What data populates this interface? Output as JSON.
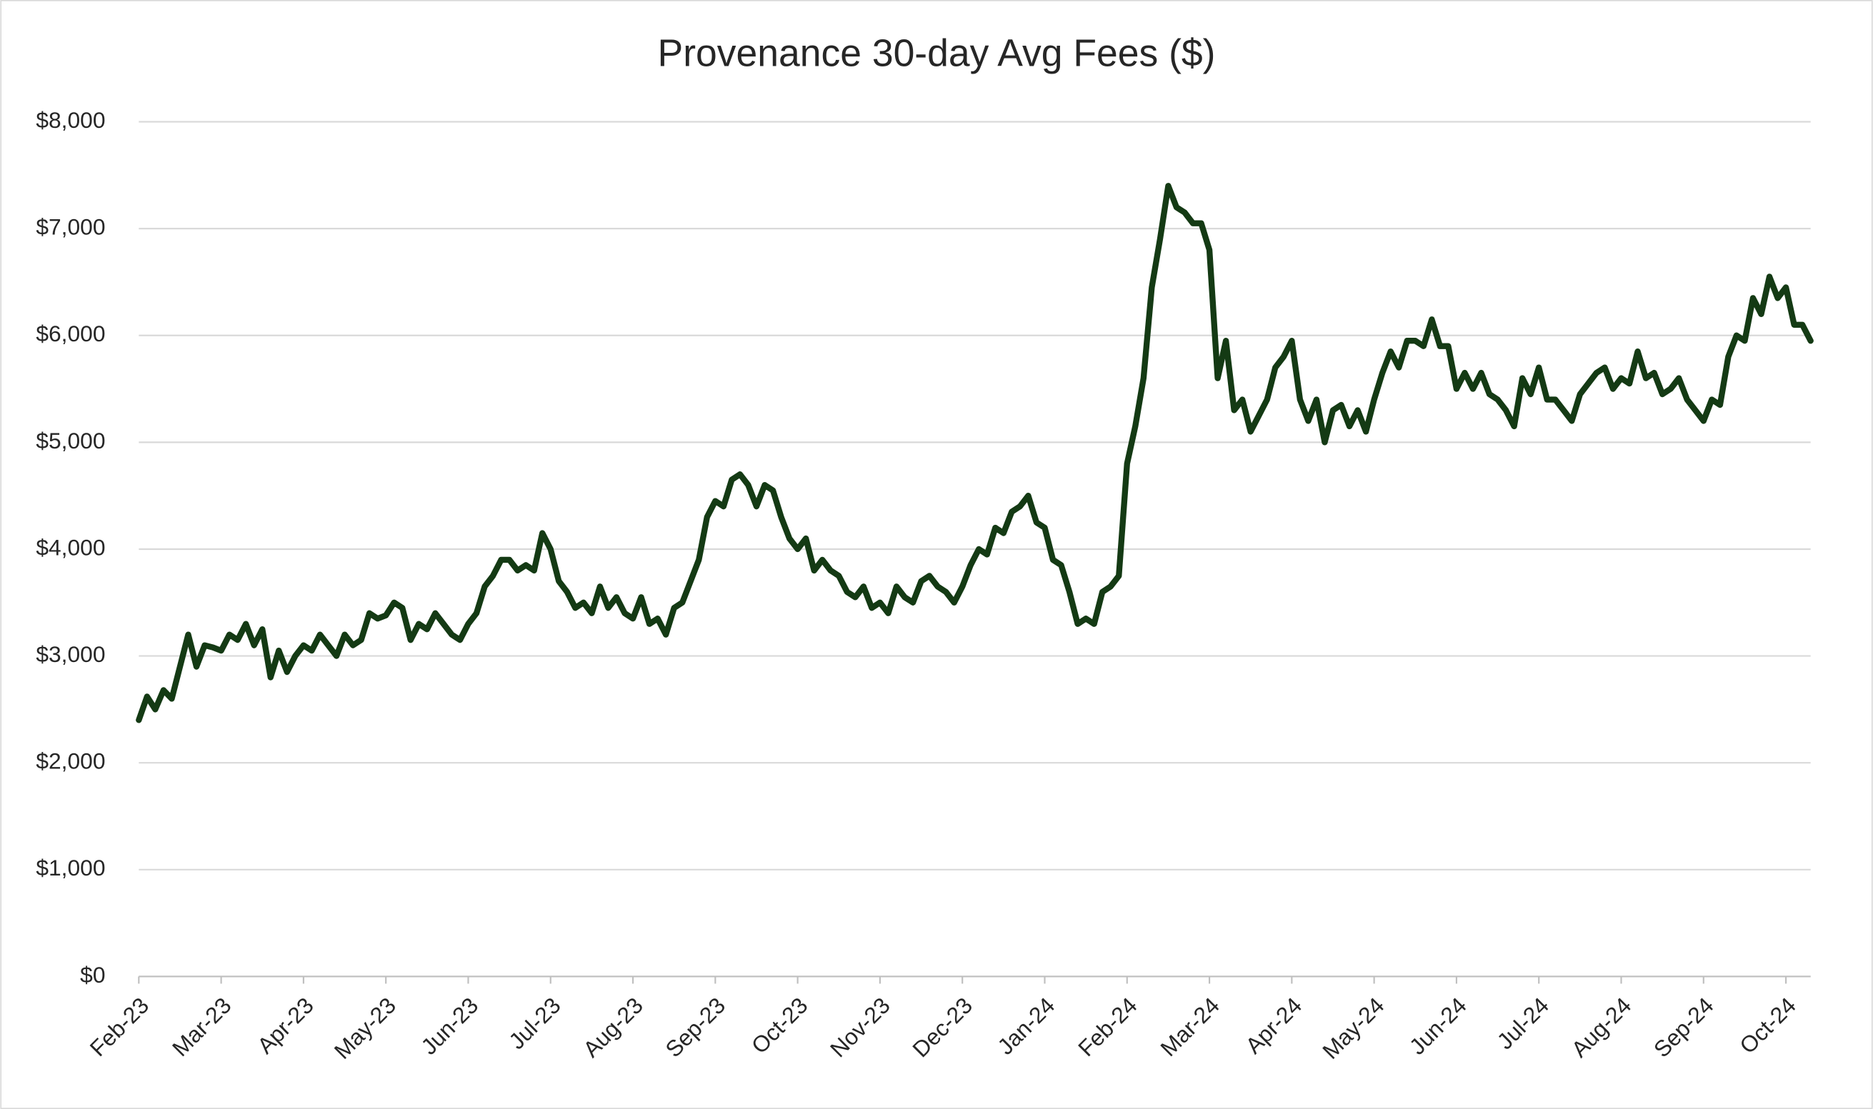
{
  "chart_data": {
    "type": "line",
    "title": "Provenance 30-day Avg Fees ($)",
    "categories": [
      "Feb-23",
      null,
      null,
      null,
      null,
      null,
      null,
      null,
      null,
      null,
      "Mar-23",
      null,
      null,
      null,
      null,
      null,
      null,
      null,
      null,
      null,
      "Apr-23",
      null,
      null,
      null,
      null,
      null,
      null,
      null,
      null,
      null,
      "May-23",
      null,
      null,
      null,
      null,
      null,
      null,
      null,
      null,
      null,
      "Jun-23",
      null,
      null,
      null,
      null,
      null,
      null,
      null,
      null,
      null,
      "Jul-23",
      null,
      null,
      null,
      null,
      null,
      null,
      null,
      null,
      null,
      "Aug-23",
      null,
      null,
      null,
      null,
      null,
      null,
      null,
      null,
      null,
      "Sep-23",
      null,
      null,
      null,
      null,
      null,
      null,
      null,
      null,
      null,
      "Oct-23",
      null,
      null,
      null,
      null,
      null,
      null,
      null,
      null,
      null,
      "Nov-23",
      null,
      null,
      null,
      null,
      null,
      null,
      null,
      null,
      null,
      "Dec-23",
      null,
      null,
      null,
      null,
      null,
      null,
      null,
      null,
      null,
      "Jan-24",
      null,
      null,
      null,
      null,
      null,
      null,
      null,
      null,
      null,
      "Feb-24",
      null,
      null,
      null,
      null,
      null,
      null,
      null,
      null,
      null,
      "Mar-24",
      null,
      null,
      null,
      null,
      null,
      null,
      null,
      null,
      null,
      "Apr-24",
      null,
      null,
      null,
      null,
      null,
      null,
      null,
      null,
      null,
      "May-24",
      null,
      null,
      null,
      null,
      null,
      null,
      null,
      null,
      null,
      "Jun-24",
      null,
      null,
      null,
      null,
      null,
      null,
      null,
      null,
      null,
      "Jul-24",
      null,
      null,
      null,
      null,
      null,
      null,
      null,
      null,
      null,
      "Aug-24",
      null,
      null,
      null,
      null,
      null,
      null,
      null,
      null,
      null,
      "Sep-24",
      null,
      null,
      null,
      null,
      null,
      null,
      null,
      null,
      null,
      "Oct-24",
      null,
      null,
      null
    ],
    "series": [
      {
        "color": "#143a14",
        "values": [
          2400,
          2620,
          2500,
          2680,
          2600,
          2900,
          3200,
          2900,
          3100,
          3080,
          3050,
          3200,
          3150,
          3300,
          3100,
          3250,
          2800,
          3050,
          2850,
          3000,
          3100,
          3050,
          3200,
          3100,
          3000,
          3200,
          3100,
          3150,
          3400,
          3350,
          3380,
          3500,
          3450,
          3150,
          3300,
          3250,
          3400,
          3300,
          3200,
          3150,
          3300,
          3400,
          3650,
          3750,
          3900,
          3900,
          3800,
          3850,
          3800,
          4150,
          4000,
          3700,
          3600,
          3450,
          3500,
          3400,
          3650,
          3450,
          3550,
          3400,
          3350,
          3550,
          3300,
          3350,
          3200,
          3450,
          3500,
          3700,
          3900,
          4300,
          4450,
          4400,
          4650,
          4700,
          4600,
          4400,
          4600,
          4550,
          4300,
          4100,
          4000,
          4100,
          3800,
          3900,
          3800,
          3750,
          3600,
          3550,
          3650,
          3450,
          3500,
          3400,
          3650,
          3550,
          3500,
          3700,
          3750,
          3650,
          3600,
          3500,
          3650,
          3850,
          4000,
          3950,
          4200,
          4150,
          4350,
          4400,
          4500,
          4250,
          4200,
          3900,
          3850,
          3600,
          3300,
          3350,
          3300,
          3600,
          3650,
          3750,
          4800,
          5150,
          5600,
          6450,
          6900,
          7400,
          7200,
          7150,
          7050,
          7050,
          6800,
          5600,
          5950,
          5300,
          5400,
          5100,
          5250,
          5400,
          5700,
          5800,
          5950,
          5400,
          5200,
          5400,
          5000,
          5300,
          5350,
          5150,
          5300,
          5100,
          5400,
          5650,
          5850,
          5700,
          5950,
          5950,
          5900,
          6150,
          5900,
          5900,
          5500,
          5650,
          5500,
          5650,
          5450,
          5400,
          5300,
          5150,
          5600,
          5450,
          5700,
          5400,
          5400,
          5300,
          5200,
          5450,
          5550,
          5650,
          5700,
          5500,
          5600,
          5550,
          5850,
          5600,
          5650,
          5450,
          5500,
          5600,
          5400,
          5300,
          5200,
          5400,
          5350,
          5800,
          6000,
          5950,
          6350,
          6200,
          6550,
          6350,
          6450,
          6100,
          6100,
          5950
        ]
      }
    ],
    "ylim": [
      0,
      8000
    ],
    "yticks": [
      {
        "value": 0,
        "label": "$0"
      },
      {
        "value": 1000,
        "label": "$1,000"
      },
      {
        "value": 2000,
        "label": "$2,000"
      },
      {
        "value": 3000,
        "label": "$3,000"
      },
      {
        "value": 4000,
        "label": "$4,000"
      },
      {
        "value": 5000,
        "label": "$5,000"
      },
      {
        "value": 6000,
        "label": "$6,000"
      },
      {
        "value": 7000,
        "label": "$7,000"
      },
      {
        "value": 8000,
        "label": "$8,000"
      }
    ],
    "grid": true
  }
}
